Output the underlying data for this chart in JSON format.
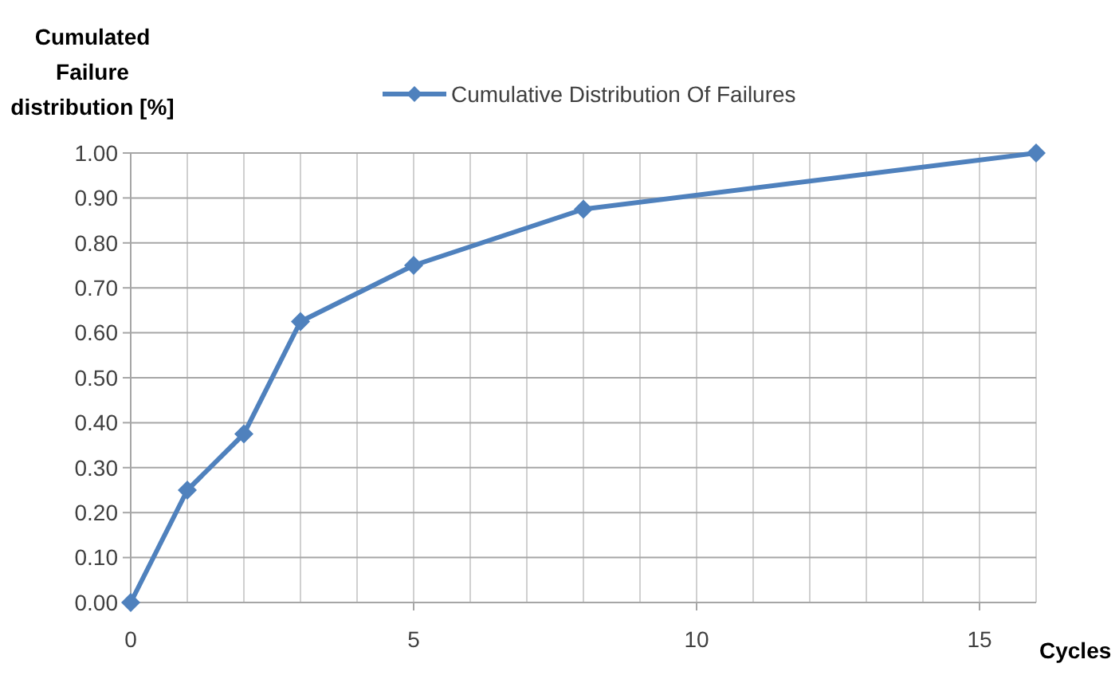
{
  "chart_data": {
    "type": "line",
    "xlabel": "Cycles",
    "ylabel": "Cumulated\nFailure\ndistribution [%]",
    "x": [
      0,
      1,
      2,
      3,
      5,
      8,
      16
    ],
    "series": [
      {
        "name": "Cumulative Distribution Of Failures",
        "color": "#4f81bd",
        "values": [
          0,
          0.25,
          0.375,
          0.625,
          0.75,
          0.875,
          1.0
        ]
      }
    ],
    "xlim": [
      0,
      16
    ],
    "xticks": [
      0,
      {
        "value": 1,
        "label": null
      },
      {
        "value": 2,
        "label": null
      },
      {
        "value": 3,
        "label": null
      },
      {
        "value": 4,
        "label": null
      },
      5,
      {
        "value": 6,
        "label": null
      },
      {
        "value": 7,
        "label": null
      },
      {
        "value": 8,
        "label": null
      },
      {
        "value": 9,
        "label": null
      },
      10,
      {
        "value": 11,
        "label": null
      },
      {
        "value": 12,
        "label": null
      },
      {
        "value": 13,
        "label": null
      },
      {
        "value": 14,
        "label": null
      },
      15,
      {
        "value": 16,
        "label": null
      }
    ],
    "ylim": [
      0,
      1
    ],
    "yticks": [
      {
        "value": 0,
        "label": "0.00"
      },
      {
        "value": 0.1,
        "label": "0.10"
      },
      {
        "value": 0.2,
        "label": "0.20"
      },
      {
        "value": 0.3,
        "label": "0.30"
      },
      {
        "value": 0.4,
        "label": "0.40"
      },
      {
        "value": 0.5,
        "label": "0.50"
      },
      {
        "value": 0.6,
        "label": "0.60"
      },
      {
        "value": 0.7,
        "label": "0.70"
      },
      {
        "value": 0.8,
        "label": "0.80"
      },
      {
        "value": 0.9,
        "label": "0.90"
      },
      {
        "value": 1,
        "label": "1.00"
      }
    ],
    "grid": true,
    "legend": "top",
    "marker": "diamond",
    "line_style": "solid"
  }
}
